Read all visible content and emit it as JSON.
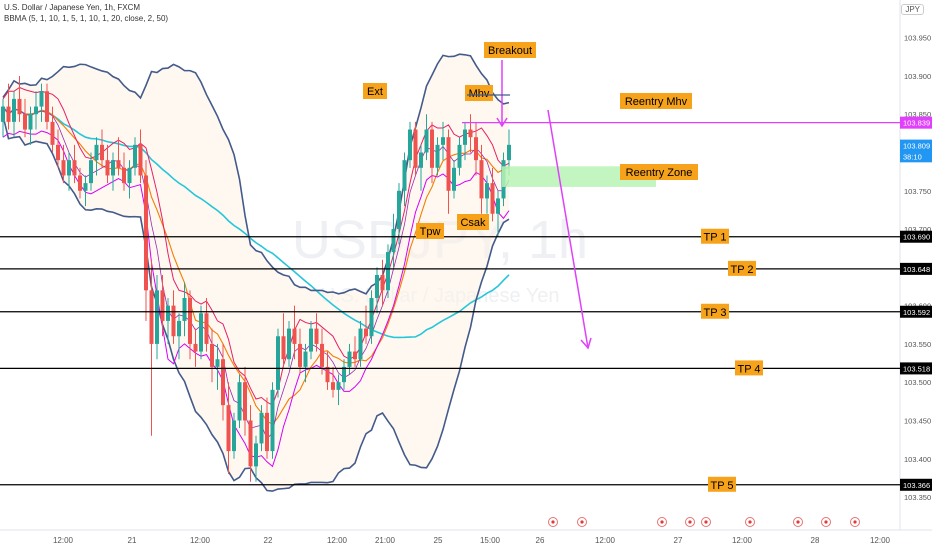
{
  "header": {
    "symbol_line": "U.S. Dollar / Japanese Yen, 1h, FXCM",
    "indicator_line": "BBMA (5, 1, 10, 1, 5, 1, 10, 1, 20, close, 2, 50)",
    "currency_button": "JPY"
  },
  "watermark": {
    "symbol": "USDJPY, 1h",
    "name": "U.S. Dollar / Japanese Yen"
  },
  "chart_data": {
    "type": "candlestick",
    "timeframe": "1h",
    "ylim": [
      103.32,
      103.96
    ],
    "x_ticks": [
      "12:00",
      "21",
      "12:00",
      "22",
      "12:00",
      "21:00",
      "25",
      "15:00",
      "26",
      "12:00",
      "27",
      "12:00",
      "28",
      "12:00"
    ],
    "y_ticks": [
      "103.950",
      "103.900",
      "103.850",
      "103.800",
      "103.750",
      "103.700",
      "103.650",
      "103.600",
      "103.550",
      "103.500",
      "103.450",
      "103.400",
      "103.350"
    ],
    "current_price_badges": [
      {
        "label": "103.839",
        "value": 103.839,
        "color": "#e040fb"
      },
      {
        "label": "103.809",
        "value": 103.809,
        "color": "#2196f3"
      },
      {
        "label": "38:10",
        "value": 103.795,
        "color": "#2196f3"
      }
    ],
    "levels": [
      {
        "name": "TP 1",
        "value": 103.69,
        "label": "103.690"
      },
      {
        "name": "TP 2",
        "value": 103.648,
        "label": "103.648"
      },
      {
        "name": "TP 3",
        "value": 103.592,
        "label": "103.592"
      },
      {
        "name": "TP 4",
        "value": 103.518,
        "label": "103.518"
      },
      {
        "name": "TP 5",
        "value": 103.366,
        "label": "103.366"
      }
    ],
    "reentry_mhv_level": 103.839,
    "reentry_zone": [
      103.755,
      103.782
    ],
    "annotations": [
      "Breakout",
      "Ext",
      "Mhv",
      "Reentry Mhv",
      "Reentry Zone",
      "Tpw",
      "Csak"
    ],
    "candles_ohlc": [
      [
        103.84,
        103.87,
        103.82,
        103.86
      ],
      [
        103.86,
        103.89,
        103.83,
        103.84
      ],
      [
        103.84,
        103.88,
        103.82,
        103.87
      ],
      [
        103.87,
        103.9,
        103.84,
        103.85
      ],
      [
        103.85,
        103.87,
        103.82,
        103.83
      ],
      [
        103.83,
        103.86,
        103.81,
        103.85
      ],
      [
        103.85,
        103.88,
        103.83,
        103.86
      ],
      [
        103.86,
        103.89,
        103.84,
        103.88
      ],
      [
        103.88,
        103.89,
        103.83,
        103.84
      ],
      [
        103.84,
        103.86,
        103.8,
        103.81
      ],
      [
        103.81,
        103.83,
        103.78,
        103.79
      ],
      [
        103.79,
        103.81,
        103.76,
        103.77
      ],
      [
        103.77,
        103.8,
        103.75,
        103.79
      ],
      [
        103.79,
        103.81,
        103.76,
        103.77
      ],
      [
        103.77,
        103.78,
        103.74,
        103.75
      ],
      [
        103.75,
        103.77,
        103.73,
        103.76
      ],
      [
        103.76,
        103.8,
        103.75,
        103.79
      ],
      [
        103.79,
        103.82,
        103.77,
        103.81
      ],
      [
        103.81,
        103.83,
        103.78,
        103.79
      ],
      [
        103.79,
        103.81,
        103.76,
        103.77
      ],
      [
        103.77,
        103.8,
        103.75,
        103.79
      ],
      [
        103.79,
        103.82,
        103.77,
        103.78
      ],
      [
        103.78,
        103.8,
        103.75,
        103.76
      ],
      [
        103.76,
        103.79,
        103.74,
        103.78
      ],
      [
        103.78,
        103.82,
        103.77,
        103.81
      ],
      [
        103.81,
        103.83,
        103.76,
        103.77
      ],
      [
        103.77,
        103.79,
        103.58,
        103.62
      ],
      [
        103.62,
        103.66,
        103.43,
        103.55
      ],
      [
        103.55,
        103.64,
        103.53,
        103.62
      ],
      [
        103.62,
        103.64,
        103.56,
        103.58
      ],
      [
        103.58,
        103.61,
        103.55,
        103.6
      ],
      [
        103.6,
        103.62,
        103.55,
        103.56
      ],
      [
        103.56,
        103.59,
        103.53,
        103.58
      ],
      [
        103.58,
        103.63,
        103.56,
        103.61
      ],
      [
        103.61,
        103.62,
        103.53,
        103.55
      ],
      [
        103.55,
        103.57,
        103.52,
        103.54
      ],
      [
        103.54,
        103.6,
        103.53,
        103.59
      ],
      [
        103.59,
        103.61,
        103.54,
        103.55
      ],
      [
        103.55,
        103.57,
        103.5,
        103.52
      ],
      [
        103.52,
        103.55,
        103.49,
        103.53
      ],
      [
        103.53,
        103.55,
        103.45,
        103.47
      ],
      [
        103.47,
        103.5,
        103.38,
        103.41
      ],
      [
        103.41,
        103.46,
        103.4,
        103.45
      ],
      [
        103.45,
        103.51,
        103.44,
        103.5
      ],
      [
        103.5,
        103.52,
        103.43,
        103.45
      ],
      [
        103.45,
        103.47,
        103.37,
        103.39
      ],
      [
        103.39,
        103.43,
        103.37,
        103.42
      ],
      [
        103.42,
        103.47,
        103.41,
        103.46
      ],
      [
        103.46,
        103.48,
        103.4,
        103.41
      ],
      [
        103.41,
        103.5,
        103.4,
        103.49
      ],
      [
        103.49,
        103.57,
        103.48,
        103.56
      ],
      [
        103.56,
        103.59,
        103.52,
        103.53
      ],
      [
        103.53,
        103.58,
        103.52,
        103.57
      ],
      [
        103.57,
        103.6,
        103.53,
        103.55
      ],
      [
        103.55,
        103.57,
        103.51,
        103.52
      ],
      [
        103.52,
        103.55,
        103.5,
        103.54
      ],
      [
        103.54,
        103.58,
        103.53,
        103.57
      ],
      [
        103.57,
        103.59,
        103.54,
        103.55
      ],
      [
        103.55,
        103.57,
        103.51,
        103.52
      ],
      [
        103.52,
        103.54,
        103.49,
        103.5
      ],
      [
        103.5,
        103.52,
        103.48,
        103.49
      ],
      [
        103.49,
        103.51,
        103.47,
        103.5
      ],
      [
        103.5,
        103.53,
        103.49,
        103.52
      ],
      [
        103.52,
        103.55,
        103.51,
        103.54
      ],
      [
        103.54,
        103.56,
        103.52,
        103.53
      ],
      [
        103.53,
        103.58,
        103.52,
        103.57
      ],
      [
        103.57,
        103.6,
        103.55,
        103.56
      ],
      [
        103.56,
        103.62,
        103.55,
        103.61
      ],
      [
        103.61,
        103.65,
        103.59,
        103.64
      ],
      [
        103.64,
        103.66,
        103.6,
        103.62
      ],
      [
        103.62,
        103.68,
        103.61,
        103.67
      ],
      [
        103.67,
        103.72,
        103.65,
        103.7
      ],
      [
        103.7,
        103.76,
        103.68,
        103.75
      ],
      [
        103.75,
        103.8,
        103.73,
        103.79
      ],
      [
        103.79,
        103.84,
        103.78,
        103.83
      ],
      [
        103.83,
        103.84,
        103.77,
        103.78
      ],
      [
        103.78,
        103.81,
        103.75,
        103.8
      ],
      [
        103.8,
        103.85,
        103.79,
        103.83
      ],
      [
        103.83,
        103.84,
        103.76,
        103.78
      ],
      [
        103.78,
        103.82,
        103.77,
        103.81
      ],
      [
        103.81,
        103.84,
        103.79,
        103.82
      ],
      [
        103.82,
        103.83,
        103.72,
        103.75
      ],
      [
        103.75,
        103.79,
        103.74,
        103.78
      ],
      [
        103.78,
        103.82,
        103.77,
        103.81
      ],
      [
        103.81,
        103.84,
        103.79,
        103.83
      ],
      [
        103.83,
        103.85,
        103.8,
        103.82
      ],
      [
        103.82,
        103.84,
        103.77,
        103.79
      ],
      [
        103.79,
        103.81,
        103.72,
        103.74
      ],
      [
        103.74,
        103.77,
        103.72,
        103.76
      ],
      [
        103.76,
        103.78,
        103.71,
        103.72
      ],
      [
        103.72,
        103.75,
        103.69,
        103.74
      ],
      [
        103.74,
        103.8,
        103.73,
        103.79
      ],
      [
        103.79,
        103.83,
        103.77,
        103.81
      ]
    ]
  },
  "colors": {
    "bull": "#26a69a",
    "bear": "#ef5350",
    "band": "#435a8a",
    "ma_pink": "#e91e63",
    "ma_magenta": "#d500f9",
    "ma_orange": "#f57c00",
    "ma_teal": "#26c6da",
    "label_bg": "#f7a21b",
    "zone": "#b9f3b5",
    "level_line": "#000000",
    "arrow": "#e040fb"
  }
}
